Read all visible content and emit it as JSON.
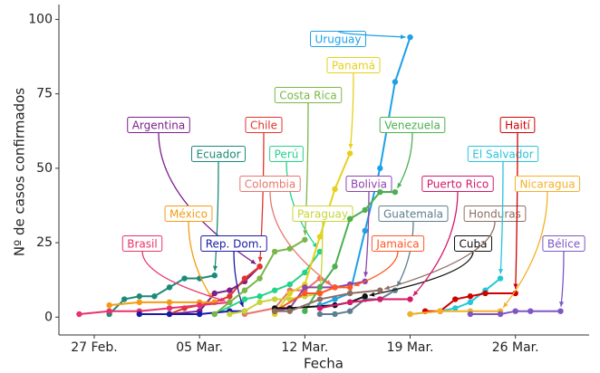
{
  "chart_data": {
    "type": "line",
    "xlabel": "Fecha",
    "ylabel": "Nº de casos confirmados",
    "xlim": [
      -2.35,
      32.9
    ],
    "ylim": [
      -6,
      105
    ],
    "xticks": [
      {
        "value": 0,
        "label": "27 Feb."
      },
      {
        "value": 7,
        "label": "05 Mar."
      },
      {
        "value": 14,
        "label": "12 Mar."
      },
      {
        "value": 21,
        "label": "19 Mar."
      },
      {
        "value": 28,
        "label": "26 Mar."
      }
    ],
    "yticks": [
      0,
      25,
      50,
      75,
      100
    ],
    "series": [
      {
        "name": "Argentina",
        "color": "#7b1f8c",
        "x": [
          5,
          7,
          8,
          9,
          10,
          11
        ],
        "values": [
          1,
          2,
          8,
          9,
          12,
          17
        ]
      },
      {
        "name": "Chile",
        "color": "#e0352b",
        "x": [
          5,
          6,
          7,
          8,
          9,
          10,
          11
        ],
        "values": [
          1,
          3,
          4,
          5,
          7,
          13,
          17
        ]
      },
      {
        "name": "Ecuador",
        "color": "#1b8a7a",
        "x": [
          1,
          2,
          3,
          4,
          5,
          6,
          7,
          8
        ],
        "values": [
          1,
          6,
          7,
          7,
          10,
          13,
          13,
          14
        ]
      },
      {
        "name": "Perú",
        "color": "#22d48a",
        "x": [
          8,
          10,
          11,
          12,
          13,
          14,
          15
        ],
        "values": [
          1,
          6,
          7,
          9,
          11,
          15,
          22
        ]
      },
      {
        "name": "Colombia",
        "color": "#e8766e",
        "x": [
          10,
          12,
          13,
          14,
          15,
          16
        ],
        "values": [
          1,
          3,
          9,
          9,
          13,
          10
        ]
      },
      {
        "name": "México",
        "color": "#f39c12",
        "x": [
          1,
          3,
          5,
          7,
          8
        ],
        "values": [
          4,
          5,
          5,
          5,
          5
        ]
      },
      {
        "name": "Brasil",
        "color": "#e8336b",
        "x": [
          -1,
          1,
          3,
          5,
          7,
          9
        ],
        "values": [
          1,
          2,
          2,
          3,
          4,
          5
        ]
      },
      {
        "name": "Rep. Dom.",
        "color": "#1a1aa8",
        "x": [
          3,
          5,
          7,
          9,
          10
        ],
        "values": [
          1,
          1,
          1,
          2,
          2
        ]
      },
      {
        "name": "Costa Rica",
        "color": "#7ab648",
        "x": [
          8,
          9,
          10,
          11,
          12,
          13,
          14
        ],
        "values": [
          1,
          5,
          9,
          13,
          22,
          23,
          26
        ]
      },
      {
        "name": "Uruguay",
        "color": "#1ea0e6",
        "x": [
          15,
          16,
          17,
          18,
          19,
          20,
          21
        ],
        "values": [
          4,
          6,
          8,
          29,
          50,
          79,
          94
        ]
      },
      {
        "name": "Panamá",
        "color": "#e6d01c",
        "x": [
          12,
          13,
          14,
          15,
          16,
          17
        ],
        "values": [
          1,
          8,
          11,
          27,
          43,
          55
        ]
      },
      {
        "name": "Paraguay",
        "color": "#c8d43a",
        "x": [
          9,
          10,
          11,
          12,
          13,
          14,
          15
        ],
        "values": [
          1,
          2,
          5,
          6,
          6,
          7,
          8
        ]
      },
      {
        "name": "Bolivia",
        "color": "#8e44ad",
        "x": [
          12,
          13,
          14,
          15,
          16,
          17,
          18
        ],
        "values": [
          2,
          3,
          10,
          10,
          10,
          11,
          12
        ]
      },
      {
        "name": "Venezuela",
        "color": "#4caf50",
        "x": [
          14,
          15,
          16,
          17,
          18,
          19,
          20
        ],
        "values": [
          2,
          10,
          17,
          33,
          36,
          42,
          42
        ]
      },
      {
        "name": "Guatemala",
        "color": "#5e7f90",
        "x": [
          15,
          16,
          17,
          18,
          19,
          20
        ],
        "values": [
          1,
          1,
          2,
          6,
          6,
          9
        ]
      },
      {
        "name": "Jamaica",
        "color": "#ff5722",
        "x": [
          12,
          14,
          15,
          16,
          17
        ],
        "values": [
          2,
          8,
          8,
          10,
          10
        ]
      },
      {
        "name": "Cuba",
        "color": "#111111",
        "x": [
          12,
          13,
          16,
          17,
          18
        ],
        "values": [
          3,
          3,
          4,
          5,
          7
        ]
      },
      {
        "name": "Honduras",
        "color": "#8d6e63",
        "x": [
          12,
          13,
          15,
          17,
          19
        ],
        "values": [
          2,
          2,
          6,
          8,
          9
        ]
      },
      {
        "name": "Puerto Rico",
        "color": "#d6196a",
        "x": [
          15,
          17,
          19,
          21
        ],
        "values": [
          3,
          5,
          6,
          6
        ]
      },
      {
        "name": "El Salvador",
        "color": "#26c6da",
        "x": [
          21,
          23,
          24,
          25,
          26,
          27
        ],
        "values": [
          1,
          2,
          3,
          5,
          9,
          13
        ]
      },
      {
        "name": "Haití",
        "color": "#d00000",
        "x": [
          22,
          23,
          24,
          25,
          26,
          28
        ],
        "values": [
          2,
          2,
          6,
          7,
          8,
          8
        ]
      },
      {
        "name": "Nicaragua",
        "color": "#f5b027",
        "x": [
          21,
          23,
          25,
          27
        ],
        "values": [
          1,
          2,
          2,
          2
        ]
      },
      {
        "name": "Bélice",
        "color": "#7e57c2",
        "x": [
          25,
          27,
          28,
          29,
          31
        ],
        "values": [
          1,
          1,
          2,
          2,
          2
        ]
      }
    ]
  }
}
